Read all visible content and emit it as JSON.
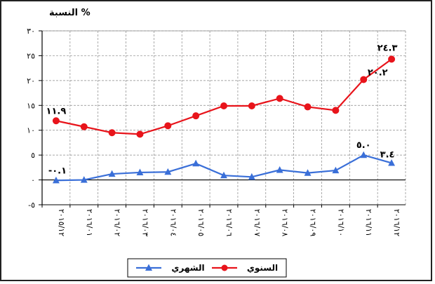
{
  "chart_data": {
    "type": "line",
    "ylabel": "% النسبة",
    "ylim": [
      -5,
      30
    ],
    "yticks": [
      {
        "value": 30,
        "label": "٣٠"
      },
      {
        "value": 25,
        "label": "٢٥"
      },
      {
        "value": 20,
        "label": "٢٠"
      },
      {
        "value": 15,
        "label": "١٥"
      },
      {
        "value": 10,
        "label": "١٠"
      },
      {
        "value": 5,
        "label": "٥"
      },
      {
        "value": 0,
        "label": "٠"
      },
      {
        "value": -5,
        "label": "-٥"
      }
    ],
    "categories": [
      "٢٠١٥/١٢",
      "٢٠١٦/٠١",
      "٢٠١٦/٠٢",
      "٢٠١٦/٠٣",
      "٢٠١٦/٠٤",
      "٢٠١٦/٠٥",
      "٢٠١٦/٠٦",
      "٢٠١٦/٠٧",
      "٢٠١٦/٠٨",
      "٢٠١٦/٠٩",
      "٢٠١٦/١٠",
      "٢٠١٦/١١",
      "٢٠١٦/١٢"
    ],
    "grid": true,
    "legend_position": "bottom",
    "series": [
      {
        "name": "السنوي",
        "color": "#e8141b",
        "marker": "circle",
        "values": [
          11.9,
          10.7,
          9.5,
          9.2,
          10.9,
          12.9,
          14.9,
          14.9,
          16.4,
          14.7,
          14.0,
          20.2,
          24.3
        ],
        "labels": [
          {
            "index": 0,
            "text": "١١.٩"
          },
          {
            "index": 11,
            "text": "٢٠.٢"
          },
          {
            "index": 12,
            "text": "٢٤.٣"
          }
        ]
      },
      {
        "name": "الشهري",
        "color": "#3a6fd8",
        "marker": "triangle",
        "values": [
          -0.1,
          0.0,
          1.2,
          1.5,
          1.6,
          3.3,
          0.9,
          0.6,
          2.0,
          1.4,
          1.9,
          5.0,
          3.4
        ],
        "labels": [
          {
            "index": 0,
            "text": "-٠.١"
          },
          {
            "index": 11,
            "text": "٥.٠"
          },
          {
            "index": 12,
            "text": "٣.٤"
          }
        ]
      }
    ]
  }
}
